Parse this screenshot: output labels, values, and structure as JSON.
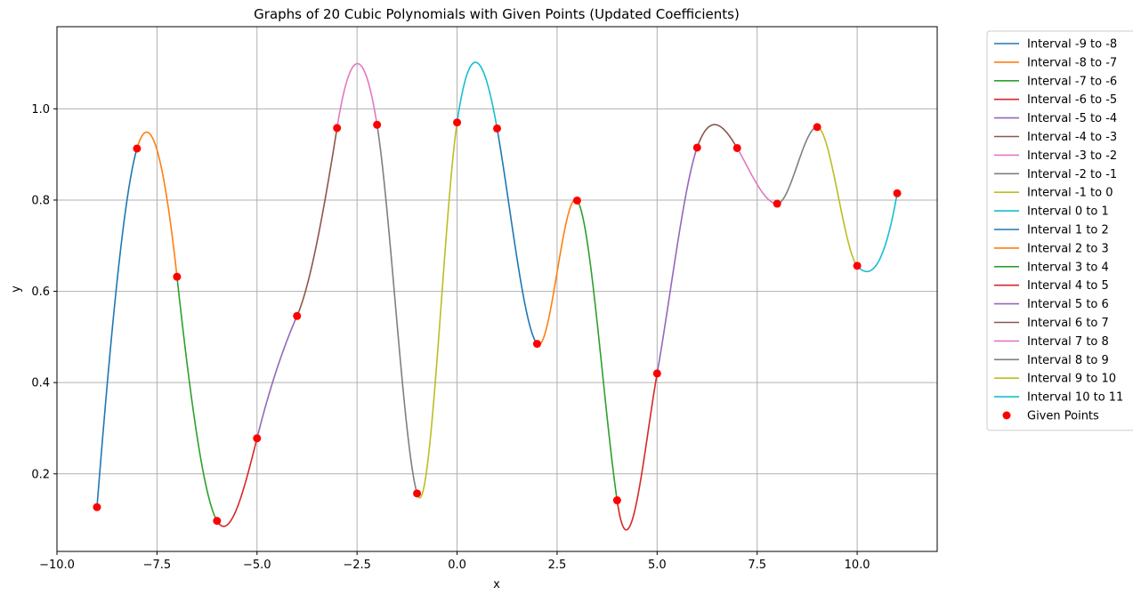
{
  "chart_data": {
    "type": "line",
    "title": "Graphs of 20 Cubic Polynomials with Given Points (Updated Coefficients)",
    "xlabel": "x",
    "ylabel": "y",
    "xlim": [
      -10,
      12
    ],
    "ylim": [
      0.03,
      1.18
    ],
    "xticks": [
      -10,
      -7.5,
      -5,
      -2.5,
      0,
      2.5,
      5,
      7.5,
      10
    ],
    "xtick_labels": [
      "−10.0",
      "−7.5",
      "−5.0",
      "−2.5",
      "0.0",
      "2.5",
      "5.0",
      "7.5",
      "10.0"
    ],
    "yticks": [
      0.2,
      0.4,
      0.6,
      0.8,
      1.0
    ],
    "ytick_labels": [
      "0.2",
      "0.4",
      "0.6",
      "0.8",
      "1.0"
    ],
    "grid": true,
    "legend_position": "outside-right-top",
    "series": [
      {
        "name": "Interval -9 to -8",
        "color": "#1f77b4",
        "x0": -9,
        "x1": -8,
        "y0": 0.127,
        "y1": 0.913,
        "s0": 1.1,
        "s1": 0.3
      },
      {
        "name": "Interval -8 to -7",
        "color": "#ff7f0e",
        "x0": -8,
        "x1": -7,
        "y0": 0.913,
        "y1": 0.632,
        "s0": 0.3,
        "s1": -0.8
      },
      {
        "name": "Interval -7 to -6",
        "color": "#2ca02c",
        "x0": -7,
        "x1": -6,
        "y0": 0.632,
        "y1": 0.097,
        "s0": -0.8,
        "s1": -0.15
      },
      {
        "name": "Interval -6 to -5",
        "color": "#d62728",
        "x0": -6,
        "x1": -5,
        "y0": 0.097,
        "y1": 0.278,
        "s0": -0.15,
        "s1": 0.35
      },
      {
        "name": "Interval -5 to -4",
        "color": "#9467bd",
        "x0": -5,
        "x1": -4,
        "y0": 0.278,
        "y1": 0.546,
        "s0": 0.35,
        "s1": 0.2
      },
      {
        "name": "Interval -4 to -3",
        "color": "#8c564b",
        "x0": -4,
        "x1": -3,
        "y0": 0.546,
        "y1": 0.958,
        "s0": 0.2,
        "s1": 0.55
      },
      {
        "name": "Interval -3 to -2",
        "color": "#e377c2",
        "x0": -3,
        "x1": -2,
        "y0": 0.958,
        "y1": 0.965,
        "s0": 0.55,
        "s1": -0.55
      },
      {
        "name": "Interval -2 to -1",
        "color": "#7f7f7f",
        "x0": -2,
        "x1": -1,
        "y0": 0.965,
        "y1": 0.157,
        "s0": -0.55,
        "s1": -0.3
      },
      {
        "name": "Interval -1 to 0",
        "color": "#bcbd22",
        "x0": -1,
        "x1": 0,
        "y0": 0.157,
        "y1": 0.97,
        "s0": -0.3,
        "s1": 0.6
      },
      {
        "name": "Interval 0 to 1",
        "color": "#17becf",
        "x0": 0,
        "x1": 1,
        "y0": 0.97,
        "y1": 0.957,
        "s0": 0.6,
        "s1": -0.5
      },
      {
        "name": "Interval 1 to 2",
        "color": "#1f77b4",
        "x0": 1,
        "x1": 2,
        "y0": 0.957,
        "y1": 0.485,
        "s0": -0.5,
        "s1": -0.1
      },
      {
        "name": "Interval 2 to 3",
        "color": "#ff7f0e",
        "x0": 2,
        "x1": 3,
        "y0": 0.485,
        "y1": 0.799,
        "s0": -0.1,
        "s1": -0.1
      },
      {
        "name": "Interval 3 to 4",
        "color": "#2ca02c",
        "x0": 3,
        "x1": 4,
        "y0": 0.799,
        "y1": 0.142,
        "s0": -0.1,
        "s1": -0.6
      },
      {
        "name": "Interval 4 to 5",
        "color": "#d62728",
        "x0": 4,
        "x1": 5,
        "y0": 0.142,
        "y1": 0.42,
        "s0": -0.6,
        "s1": 0.5
      },
      {
        "name": "Interval 5 to 6",
        "color": "#9467bd",
        "x0": 5,
        "x1": 6,
        "y0": 0.42,
        "y1": 0.915,
        "s0": 0.5,
        "s1": 0.25
      },
      {
        "name": "Interval 6 to 7",
        "color": "#8c564b",
        "x0": 6,
        "x1": 7,
        "y0": 0.915,
        "y1": 0.914,
        "s0": 0.25,
        "s1": -0.15
      },
      {
        "name": "Interval 7 to 8",
        "color": "#e377c2",
        "x0": 7,
        "x1": 8,
        "y0": 0.914,
        "y1": 0.792,
        "s0": -0.15,
        "s1": 0.0
      },
      {
        "name": "Interval 8 to 9",
        "color": "#7f7f7f",
        "x0": 8,
        "x1": 9,
        "y0": 0.792,
        "y1": 0.96,
        "s0": 0.0,
        "s1": 0.0
      },
      {
        "name": "Interval 9 to 10",
        "color": "#bcbd22",
        "x0": 9,
        "x1": 10,
        "y0": 0.96,
        "y1": 0.656,
        "s0": 0.0,
        "s1": -0.1
      },
      {
        "name": "Interval 10 to 11",
        "color": "#17becf",
        "x0": 10,
        "x1": 11,
        "y0": 0.656,
        "y1": 0.815,
        "s0": -0.1,
        "s1": 0.5
      }
    ],
    "points": {
      "name": "Given Points",
      "color": "#ff0000",
      "x": [
        -9,
        -8,
        -7,
        -6,
        -5,
        -4,
        -3,
        -2,
        -1,
        0,
        1,
        2,
        3,
        4,
        5,
        6,
        7,
        8,
        9,
        10,
        11
      ],
      "y": [
        0.127,
        0.913,
        0.632,
        0.097,
        0.278,
        0.546,
        0.958,
        0.965,
        0.157,
        0.97,
        0.957,
        0.485,
        0.799,
        0.142,
        0.42,
        0.915,
        0.914,
        0.792,
        0.96,
        0.656,
        0.815
      ]
    }
  }
}
